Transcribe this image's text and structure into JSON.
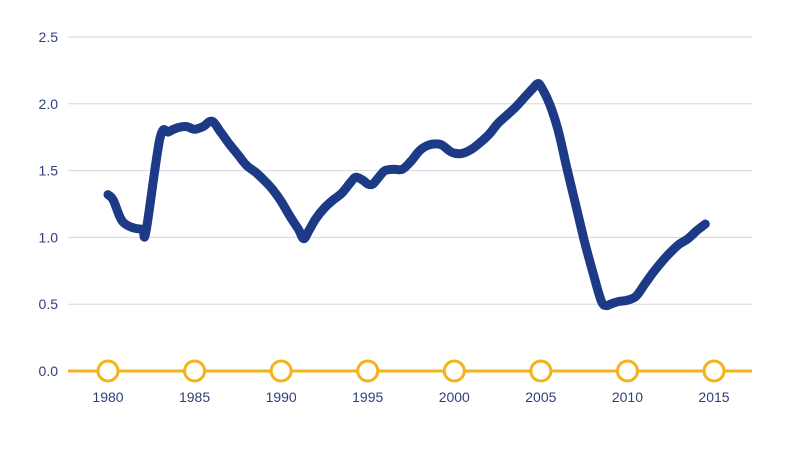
{
  "chart_data": {
    "type": "line",
    "title": "",
    "xlabel": "",
    "ylabel": "",
    "xlim": [
      1980,
      2015
    ],
    "ylim": [
      0,
      2.5
    ],
    "grid": true,
    "legend": "none",
    "x_ticks": [
      "1980",
      "1985",
      "1990",
      "1995",
      "2000",
      "2005",
      "2010",
      "2015"
    ],
    "y_ticks": [
      "0.0",
      "0.5",
      "1.0",
      "1.5",
      "2.0",
      "2.5"
    ],
    "series": [
      {
        "color": "#1d3a87",
        "points": [
          [
            1980.0,
            1.32
          ],
          [
            1980.3,
            1.28
          ],
          [
            1980.7,
            1.15
          ],
          [
            1981.0,
            1.1
          ],
          [
            1981.5,
            1.07
          ],
          [
            1982.0,
            1.06
          ],
          [
            1982.2,
            1.05
          ],
          [
            1983.0,
            1.74
          ],
          [
            1983.5,
            1.79
          ],
          [
            1984.0,
            1.82
          ],
          [
            1984.5,
            1.83
          ],
          [
            1985.0,
            1.81
          ],
          [
            1985.5,
            1.83
          ],
          [
            1986.0,
            1.87
          ],
          [
            1986.5,
            1.79
          ],
          [
            1987.0,
            1.7
          ],
          [
            1987.5,
            1.62
          ],
          [
            1988.0,
            1.54
          ],
          [
            1988.5,
            1.49
          ],
          [
            1989.0,
            1.43
          ],
          [
            1989.5,
            1.36
          ],
          [
            1990.0,
            1.27
          ],
          [
            1990.5,
            1.16
          ],
          [
            1991.0,
            1.06
          ],
          [
            1991.3,
            0.99
          ],
          [
            1991.6,
            1.05
          ],
          [
            1992.0,
            1.14
          ],
          [
            1992.5,
            1.22
          ],
          [
            1993.0,
            1.28
          ],
          [
            1993.5,
            1.33
          ],
          [
            1994.0,
            1.41
          ],
          [
            1994.3,
            1.45
          ],
          [
            1994.7,
            1.43
          ],
          [
            1995.0,
            1.4
          ],
          [
            1995.3,
            1.4
          ],
          [
            1995.7,
            1.46
          ],
          [
            1996.0,
            1.5
          ],
          [
            1996.5,
            1.51
          ],
          [
            1997.0,
            1.51
          ],
          [
            1997.5,
            1.57
          ],
          [
            1998.0,
            1.65
          ],
          [
            1998.5,
            1.69
          ],
          [
            1999.0,
            1.7
          ],
          [
            1999.3,
            1.69
          ],
          [
            1999.7,
            1.65
          ],
          [
            2000.0,
            1.63
          ],
          [
            2000.5,
            1.63
          ],
          [
            2001.0,
            1.66
          ],
          [
            2001.5,
            1.71
          ],
          [
            2002.0,
            1.77
          ],
          [
            2002.5,
            1.85
          ],
          [
            2003.0,
            1.91
          ],
          [
            2003.5,
            1.97
          ],
          [
            2004.0,
            2.04
          ],
          [
            2004.5,
            2.11
          ],
          [
            2004.8,
            2.15
          ],
          [
            2005.0,
            2.13
          ],
          [
            2005.5,
            2.0
          ],
          [
            2006.0,
            1.8
          ],
          [
            2006.5,
            1.52
          ],
          [
            2007.0,
            1.25
          ],
          [
            2007.5,
            0.98
          ],
          [
            2008.0,
            0.74
          ],
          [
            2008.5,
            0.52
          ],
          [
            2008.8,
            0.49
          ],
          [
            2009.0,
            0.5
          ],
          [
            2009.5,
            0.52
          ],
          [
            2010.0,
            0.53
          ],
          [
            2010.5,
            0.56
          ],
          [
            2011.0,
            0.65
          ],
          [
            2011.5,
            0.74
          ],
          [
            2012.0,
            0.82
          ],
          [
            2012.5,
            0.89
          ],
          [
            2013.0,
            0.95
          ],
          [
            2013.5,
            0.99
          ],
          [
            2014.0,
            1.05
          ],
          [
            2014.5,
            1.1
          ]
        ]
      }
    ],
    "x_axis_color": "#f2b31b",
    "x_marker_fill": "#ffffff",
    "gridline_color": "#d3d6e0",
    "label_color": "#2f3f7a"
  }
}
